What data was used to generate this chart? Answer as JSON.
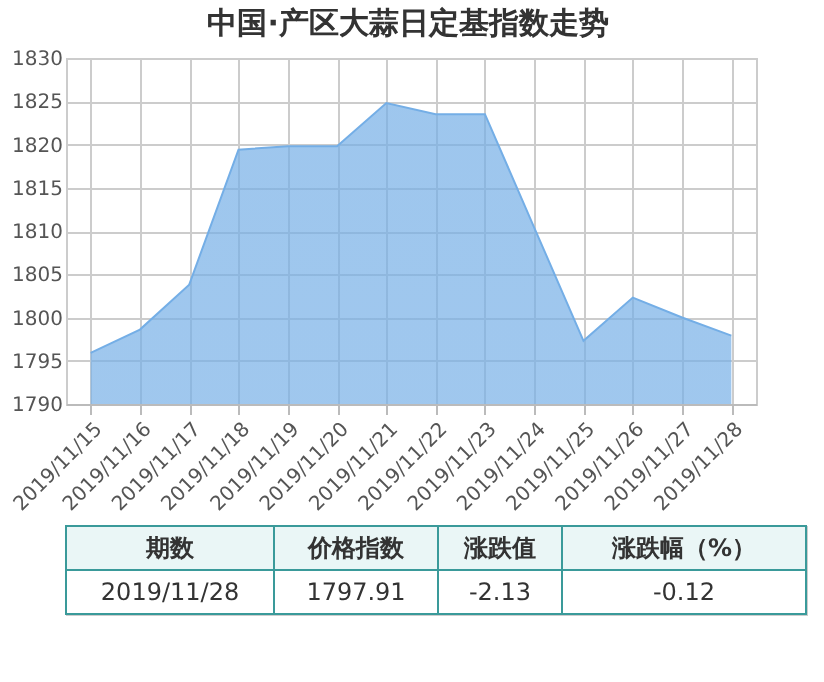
{
  "chart_data": {
    "type": "area",
    "title": "中国·产区大蒜日定基指数走势",
    "categories": [
      "2019/11/15",
      "2019/11/16",
      "2019/11/17",
      "2019/11/18",
      "2019/11/19",
      "2019/11/20",
      "2019/11/21",
      "2019/11/22",
      "2019/11/23",
      "2019/11/24",
      "2019/11/25",
      "2019/11/26",
      "2019/11/27",
      "2019/11/28"
    ],
    "series": [
      {
        "color": "#74aee6",
        "values": [
          1795.9,
          1798.6,
          1803.8,
          1819.4,
          1819.8,
          1819.8,
          1824.8,
          1823.5,
          1823.5,
          1810.4,
          1797.3,
          1802.3,
          1800.0,
          1797.9
        ]
      }
    ],
    "ylim": [
      1790,
      1830
    ],
    "yticks": [
      1790,
      1795,
      1800,
      1805,
      1810,
      1815,
      1820,
      1825,
      1830
    ],
    "grid": true,
    "annotations": [
      "期数",
      "价格指数",
      "涨跌值",
      "涨跌幅（%）",
      "2019/11/28",
      "1797.91",
      "-2.13",
      "-0.12"
    ]
  }
}
